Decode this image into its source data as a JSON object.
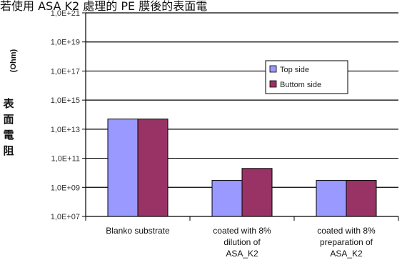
{
  "page_title": "若使用 ASA K2 處理的 PE 膜後的表面電",
  "chart_data": {
    "type": "bar",
    "ylabel": "(Ohm)",
    "ylabel_cn": "表面電阻",
    "log_scale": true,
    "ylim": [
      10000000.0,
      1e+21
    ],
    "yticks": [
      {
        "value": 1e+21,
        "label": "1,0E+21"
      },
      {
        "value": 1e+19,
        "label": "1,0E+19"
      },
      {
        "value": 1e+17,
        "label": "1,0E+17"
      },
      {
        "value": 1000000000000000.0,
        "label": "1,0E+15"
      },
      {
        "value": 10000000000000.0,
        "label": "1,0E+13"
      },
      {
        "value": 100000000000.0,
        "label": "1,0E+11"
      },
      {
        "value": 1000000000.0,
        "label": "1,0E+09"
      },
      {
        "value": 10000000.0,
        "label": "1,0E+07"
      }
    ],
    "categories": [
      [
        "Blanko substrate"
      ],
      [
        "coated with 8%",
        "dilution of",
        "ASA_K2"
      ],
      [
        "coated with 8%",
        "preparation of",
        "ASA_K2"
      ]
    ],
    "series": [
      {
        "name": "Top side",
        "color": "#9999ff",
        "values": [
          50000000000000.0,
          3000000000.0,
          3000000000.0
        ]
      },
      {
        "name": "Buttom side",
        "color": "#993366",
        "values": [
          50000000000000.0,
          20000000000.0,
          3000000000.0
        ]
      }
    ],
    "grid": true,
    "legend_position": "top-right"
  }
}
